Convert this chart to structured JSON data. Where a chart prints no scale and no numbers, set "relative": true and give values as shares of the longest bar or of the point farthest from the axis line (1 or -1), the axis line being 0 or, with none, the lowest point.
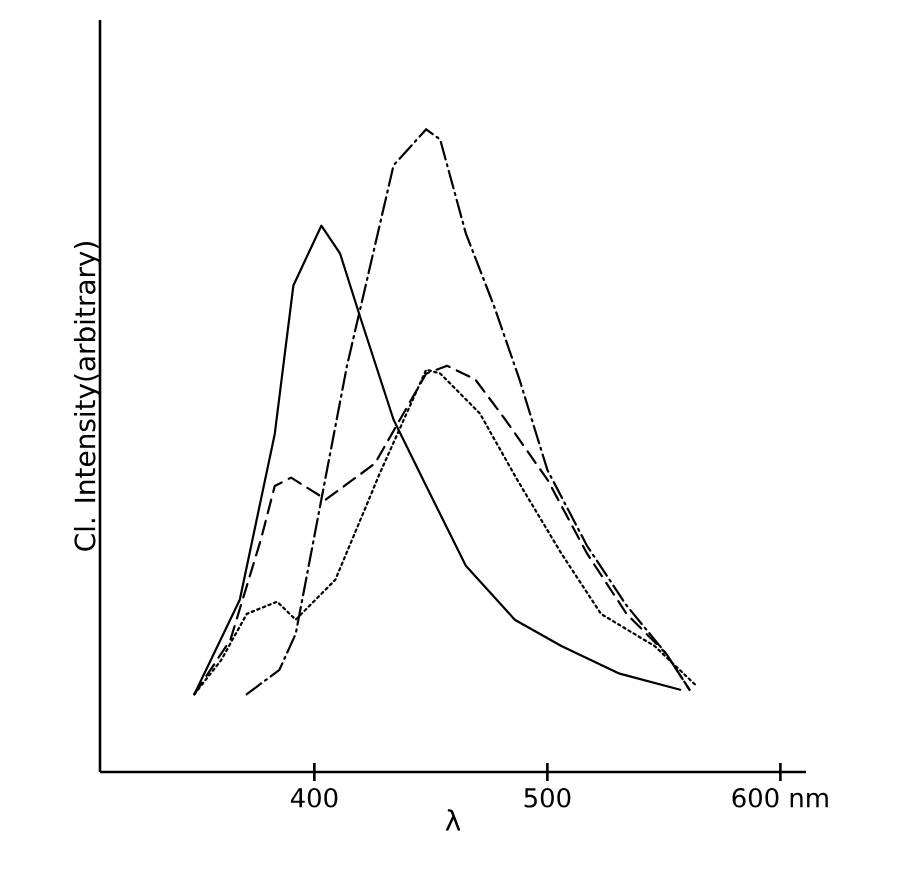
{
  "chart_data": {
    "type": "line",
    "relative": true,
    "xlabel": "λ",
    "ylabel": "Cl. Intensity(arbitrary)",
    "xlim": [
      308,
      611
    ],
    "xticks": [
      400,
      500,
      {
        "value": 600,
        "label": "600 nm"
      }
    ],
    "marker": "none",
    "series": [
      {
        "color": "#000000",
        "line_style": "solid",
        "x": [
          348.5,
          368,
          383,
          391,
          403,
          411,
          420,
          434,
          448,
          465,
          486,
          506,
          531,
          557
        ],
        "values": [
          0.121,
          0.268,
          0.526,
          0.757,
          0.85,
          0.807,
          0.704,
          0.548,
          0.445,
          0.321,
          0.237,
          0.196,
          0.153,
          0.128
        ]
      },
      {
        "color": "#000000",
        "line_style": "dashed",
        "x": [
          348.5,
          364,
          377,
          383,
          390,
          405,
          426,
          448,
          457,
          469,
          482,
          500,
          517,
          534,
          551,
          561
        ],
        "values": [
          0.121,
          0.206,
          0.361,
          0.445,
          0.458,
          0.424,
          0.48,
          0.62,
          0.632,
          0.611,
          0.548,
          0.455,
          0.34,
          0.246,
          0.184,
          0.128
        ]
      },
      {
        "color": "#000000",
        "line_style": "dotted",
        "x": [
          348.5,
          360,
          371,
          384,
          392,
          409,
          428,
          448,
          454,
          471,
          487,
          506,
          523,
          546,
          564
        ],
        "values": [
          0.121,
          0.174,
          0.246,
          0.265,
          0.237,
          0.299,
          0.464,
          0.626,
          0.62,
          0.558,
          0.455,
          0.34,
          0.246,
          0.196,
          0.134
        ]
      },
      {
        "color": "#000000",
        "line_style": "dashdot",
        "x": [
          371,
          385,
          392,
          403,
          414,
          426,
          434,
          448,
          454,
          465,
          477,
          488,
          500,
          517,
          534,
          551,
          561
        ],
        "values": [
          0.121,
          0.159,
          0.215,
          0.424,
          0.632,
          0.819,
          0.944,
          1.0,
          0.984,
          0.838,
          0.726,
          0.611,
          0.47,
          0.352,
          0.259,
          0.184,
          0.128
        ]
      }
    ]
  }
}
